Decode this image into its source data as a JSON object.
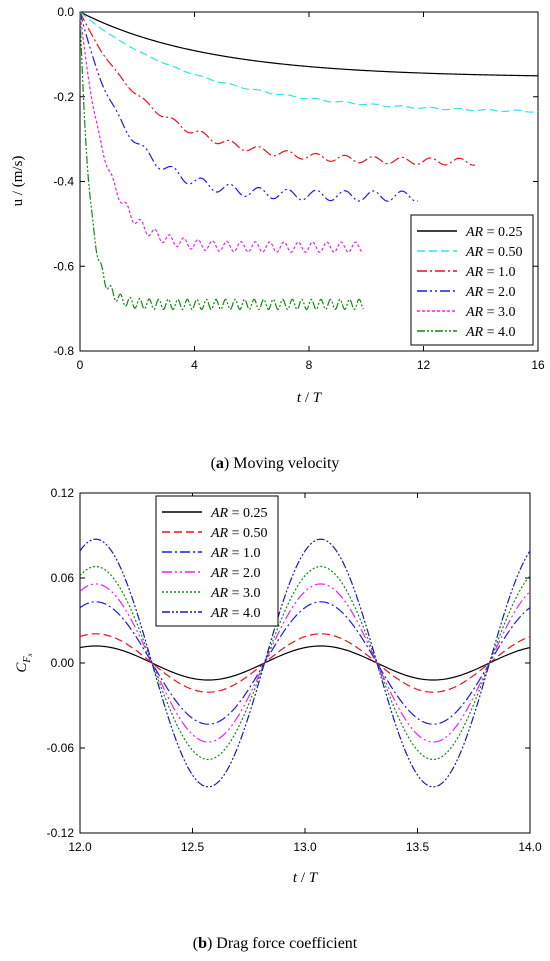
{
  "chart_data": [
    {
      "type": "line",
      "caption_label": "a",
      "caption_text": " Moving velocity",
      "xlabel_italic": "t",
      "xlabel_rest": " / ",
      "xlabel_italic2": "T",
      "ylabel": "u / (m/s)",
      "xlim": [
        0,
        16
      ],
      "ylim": [
        -0.8,
        0.0
      ],
      "xticks": [
        0,
        4,
        8,
        12,
        16
      ],
      "xtick_labels": [
        "0",
        "4",
        "8",
        "12",
        "16"
      ],
      "yticks": [
        0.0,
        -0.2,
        -0.4,
        -0.6,
        -0.8
      ],
      "ytick_labels": [
        "0.0",
        "-0.2",
        "-0.4",
        "-0.6",
        "-0.8"
      ],
      "legend_position": "bottom-right",
      "series": [
        {
          "name": "AR = 0.25",
          "ar": "0.25",
          "color": "#000000",
          "dash": "",
          "tEnd": 16,
          "final": -0.155,
          "tau": 4.5,
          "amp": 0.0,
          "freq": 1
        },
        {
          "name": "AR = 0.50",
          "ar": "0.50",
          "color": "#33e0ee",
          "dash": "8,4",
          "tEnd": 16,
          "final": -0.24,
          "tau": 4.2,
          "amp": 0.002,
          "freq": 1
        },
        {
          "name": "AR = 1.0",
          "ar": "1.0",
          "color": "#e8111b",
          "dash": "10,3,2,3",
          "tEnd": 13.8,
          "final": -0.355,
          "tau": 2.5,
          "amp": 0.008,
          "freq": 1
        },
        {
          "name": "AR = 2.0",
          "ar": "2.0",
          "color": "#1b1be8",
          "dash": "10,3,2,3,2,3",
          "tEnd": 11.8,
          "final": -0.435,
          "tau": 1.6,
          "amp": 0.012,
          "freq": 1
        },
        {
          "name": "AR = 3.0",
          "ar": "3.0",
          "color": "#ee22ee",
          "dash": "3,2",
          "tEnd": 9.9,
          "final": -0.555,
          "tau": 0.9,
          "amp": 0.012,
          "freq": 2
        },
        {
          "name": "AR = 4.0",
          "ar": "4.0",
          "color": "#0f8a0f",
          "dash": "8,2,2,2,2,2",
          "tEnd": 9.9,
          "final": -0.69,
          "tau": 0.35,
          "amp": 0.012,
          "freq": 3
        }
      ]
    },
    {
      "type": "line",
      "caption_label": "b",
      "caption_text": " Drag force coefficient",
      "xlabel_italic": "t",
      "xlabel_rest": " / ",
      "xlabel_italic2": "T",
      "ylabel": "C",
      "ylabel_sub": "F",
      "ylabel_subsub": "x",
      "xlim": [
        12.0,
        14.0
      ],
      "ylim": [
        -0.12,
        0.12
      ],
      "xticks": [
        12.0,
        12.5,
        13.0,
        13.5,
        14.0
      ],
      "xtick_labels": [
        "12.0",
        "12.5",
        "13.0",
        "13.5",
        "14.0"
      ],
      "yticks": [
        0.12,
        0.06,
        0.0,
        -0.06,
        -0.12
      ],
      "ytick_labels": [
        "0.12",
        "0.06",
        "0.00",
        "-0.06",
        "-0.12"
      ],
      "legend_position": "top-left",
      "series": [
        {
          "name": "AR = 0.25",
          "ar": "0.25",
          "color": "#000000",
          "dash": "",
          "amp": 0.012,
          "shift": 0.0,
          "phase": 0.12,
          "zero": 12.32,
          "period": 1.0
        },
        {
          "name": "AR = 0.50",
          "ar": "0.50",
          "color": "#e8111b",
          "dash": "8,4",
          "amp": 0.02,
          "shift": -0.002,
          "phase": 0.12,
          "zero": 12.32,
          "period": 1.0
        },
        {
          "name": "AR = 1.0",
          "ar": "1.0",
          "color": "#1b1be8",
          "dash": "10,3,2,3",
          "amp": 0.042,
          "shift": -0.004,
          "phase": 0.12,
          "zero": 12.32,
          "period": 1.0
        },
        {
          "name": "AR = 2.0",
          "ar": "2.0",
          "color": "#ee22ee",
          "dash": "10,3,2,3,2,3",
          "amp": 0.054,
          "shift": -0.006,
          "phase": 0.12,
          "zero": 12.32,
          "period": 1.0
        },
        {
          "name": "AR = 3.0",
          "ar": "3.0",
          "color": "#0f8a0f",
          "dash": "2,2",
          "amp": 0.066,
          "shift": -0.007,
          "phase": 0.12,
          "zero": 12.32,
          "period": 1.0
        },
        {
          "name": "AR = 4.0",
          "ar": "4.0",
          "color": "#1b1bb8",
          "dash": "8,2,2,2,2,2",
          "amp": 0.085,
          "shift": -0.008,
          "phase": 0.12,
          "zero": 12.32,
          "period": 1.0
        }
      ]
    }
  ]
}
